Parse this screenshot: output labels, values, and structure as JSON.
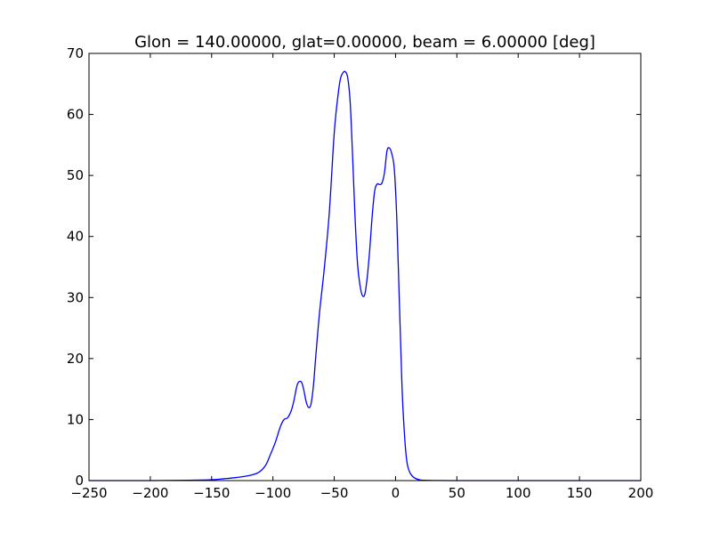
{
  "chart_data": {
    "type": "line",
    "title": "Glon = 140.00000, glat=0.00000, beam = 6.00000 [deg]",
    "xlabel": "",
    "ylabel": "",
    "xlim": [
      -250,
      200
    ],
    "ylim": [
      0,
      70
    ],
    "x_ticks": [
      -250,
      -200,
      -150,
      -100,
      -50,
      0,
      50,
      100,
      150,
      200
    ],
    "x_tick_labels": [
      "−250",
      "−200",
      "−150",
      "−100",
      "−50",
      "0",
      "50",
      "100",
      "150",
      "200"
    ],
    "y_ticks": [
      0,
      10,
      20,
      30,
      40,
      50,
      60,
      70
    ],
    "y_tick_labels": [
      "0",
      "10",
      "20",
      "30",
      "40",
      "50",
      "60",
      "70"
    ],
    "grid": false,
    "legend": "none",
    "series": [
      {
        "color": "#0000ff",
        "x": [
          -250,
          -200,
          -170,
          -150,
          -140,
          -130,
          -120,
          -112,
          -106,
          -102,
          -98,
          -94,
          -91,
          -88,
          -85,
          -83,
          -80,
          -77,
          -75,
          -73,
          -71,
          -69,
          -67,
          -65,
          -62,
          -58,
          -54,
          -50,
          -47,
          -45,
          -43,
          -41,
          -39,
          -37,
          -35,
          -33,
          -31,
          -29,
          -27,
          -25,
          -23,
          -21,
          -19,
          -17,
          -15,
          -13,
          -11,
          -9,
          -7,
          -5,
          -3,
          -1,
          1,
          3,
          5,
          6,
          7,
          8,
          9,
          10,
          12,
          15,
          20,
          30,
          50,
          100,
          150,
          200
        ],
        "y": [
          0,
          0,
          0.05,
          0.15,
          0.3,
          0.5,
          0.8,
          1.3,
          2.5,
          4.3,
          6.3,
          8.8,
          10.0,
          10.3,
          11.5,
          13.0,
          15.8,
          16.2,
          15.0,
          13.0,
          12.0,
          12.5,
          15.5,
          20.5,
          27.5,
          35.0,
          44.0,
          57.0,
          63.0,
          65.8,
          66.8,
          67.0,
          66.0,
          62.0,
          53.0,
          43.0,
          35.5,
          32.0,
          30.3,
          30.6,
          33.5,
          38.0,
          43.5,
          47.5,
          48.6,
          48.5,
          48.8,
          50.5,
          54.0,
          54.5,
          53.5,
          51.0,
          43.0,
          30.0,
          17.0,
          12.0,
          8.5,
          5.5,
          3.5,
          2.3,
          1.2,
          0.5,
          0.1,
          0.02,
          0,
          0,
          0,
          0
        ]
      }
    ]
  }
}
